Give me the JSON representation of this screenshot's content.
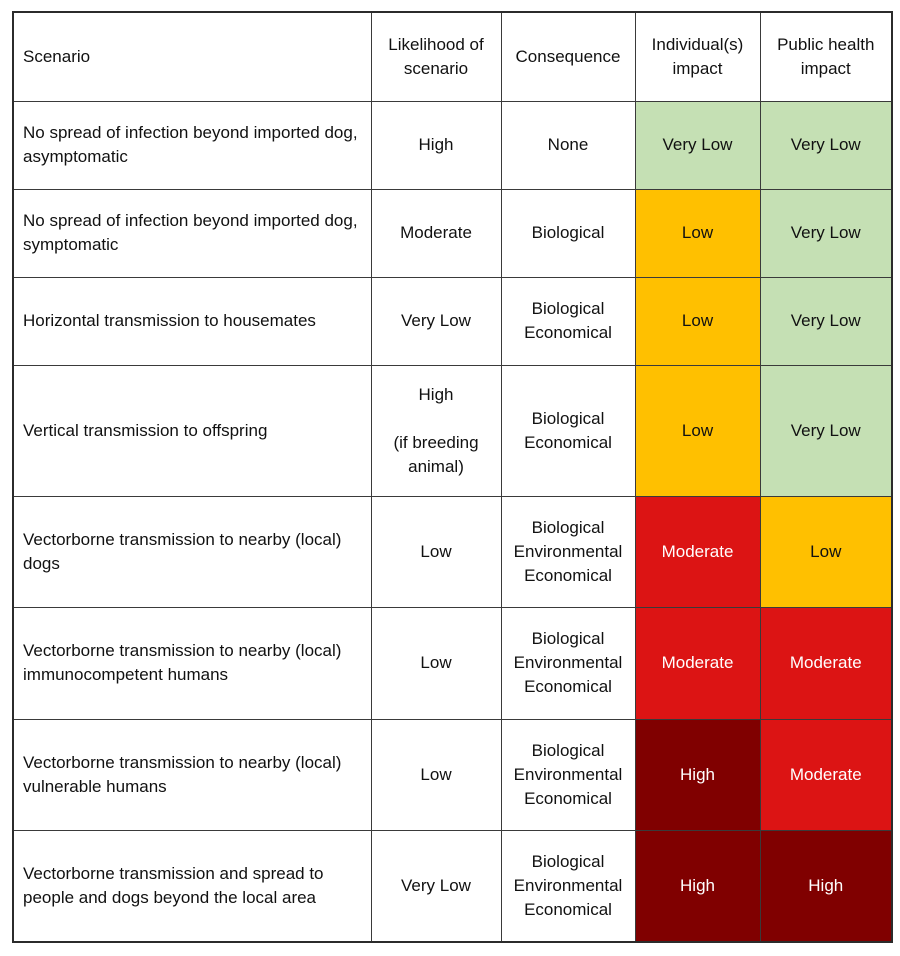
{
  "table": {
    "headers": [
      "Scenario",
      "Likelihood of scenario",
      "Consequence",
      "Individual(s) impact",
      "Public health impact"
    ],
    "rows": [
      {
        "scenario": "No spread of infection beyond imported dog, asymptomatic",
        "likelihood": "High",
        "consequence": "None",
        "individual": "Very Low",
        "public": "Very Low"
      },
      {
        "scenario": "No spread of infection beyond imported dog, symptomatic",
        "likelihood": "Moderate",
        "consequence": "Biological",
        "individual": "Low",
        "public": "Very Low"
      },
      {
        "scenario": "Horizontal transmission to housemates",
        "likelihood": "Very Low",
        "consequence": "Biological\nEconomical",
        "individual": "Low",
        "public": "Very Low"
      },
      {
        "scenario": "Vertical transmission to offspring",
        "likelihood": "High\n\n(if breeding animal)",
        "consequence": "Biological\nEconomical",
        "individual": "Low",
        "public": "Very Low"
      },
      {
        "scenario": "Vectorborne transmission to nearby (local) dogs",
        "likelihood": "Low",
        "consequence": "Biological\nEnvironmental\nEconomical",
        "individual": "Moderate",
        "public": "Low"
      },
      {
        "scenario": "Vectorborne transmission to nearby (local) immunocompetent humans",
        "likelihood": "Low",
        "consequence": "Biological\nEnvironmental\nEconomical",
        "individual": "Moderate",
        "public": "Moderate"
      },
      {
        "scenario": "Vectorborne transmission to nearby (local) vulnerable humans",
        "likelihood": "Low",
        "consequence": "Biological\nEnvironmental\nEconomical",
        "individual": "High",
        "public": "Moderate"
      },
      {
        "scenario": "Vectorborne transmission and spread to people and dogs beyond the local area",
        "likelihood": "Very Low",
        "consequence": "Biological\nEnvironmental\nEconomical",
        "individual": "High",
        "public": "High"
      }
    ]
  },
  "impact_colors": {
    "Very Low": "#c5e0b4",
    "Low": "#ffc000",
    "Moderate": "#dc1414",
    "High": "#800000"
  }
}
